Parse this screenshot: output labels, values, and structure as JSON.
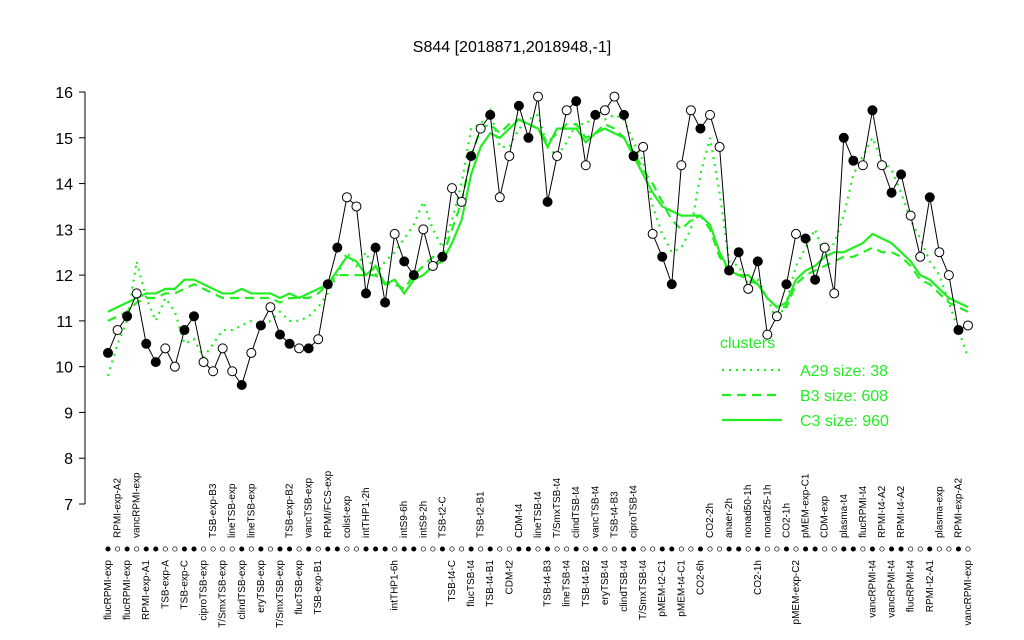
{
  "chart_data": {
    "type": "line",
    "title": "S844 [2018871,2018948,-1]",
    "ylim": [
      7,
      16
    ],
    "yticks": [
      7,
      8,
      9,
      10,
      11,
      12,
      13,
      14,
      15,
      16
    ],
    "legend_title": "clusters",
    "legend_position": "right",
    "categories": [
      "flucRPMI-exp",
      "RPMI-exp-A2",
      "flucRPMI-exp",
      "vancRPMI-exp",
      "RPMI-exp-A1",
      null,
      "TSB-exp-A",
      null,
      "TSB-exp-C",
      null,
      "ciproTSB-exp",
      "TSB-exp-B3",
      "T/SmxTSB-exp",
      "lineTSB-exp",
      "clindTSB-exp",
      "lineTSB-exp",
      "eryTSB-exp",
      null,
      "T/SmxTSB-exp",
      "TSB-exp-B2",
      "flucTSB-exp",
      "vancTSB-exp",
      "TSB-exp-B1",
      "RPMI/FCS-exp",
      null,
      "colist-exp",
      null,
      "intTHP1-2h",
      null,
      null,
      "intTHP1-6h",
      "intS9-6h",
      null,
      "intS9-2h",
      null,
      "TSB-t2-C",
      "TSB-t4-C",
      null,
      "flucTSB-t4",
      "TSB-t2-B1",
      "TSB-t4-B1",
      null,
      "CDM-t2",
      "CDM-t4",
      null,
      "lineTSB-t4",
      "TSB-t4-B3",
      "T/SmxTSB-t4",
      "lineTSB-t4",
      "clindTSB-t4",
      "TSB-t4-B2",
      "vancTSB-t4",
      "eryTSB-t4",
      "TSB-t4-B3",
      "clindTSB-t4",
      "ciproTSB-t4",
      "T/SmxTSB-t4",
      null,
      "pMEM-t2-C1",
      null,
      "pMEM-t4-C1",
      null,
      "CO2-6h",
      "CO2-2h",
      null,
      "anaer-2h",
      null,
      "nonad50-1h",
      "CO2-1h",
      "nonad25-1h",
      null,
      "CO2-1h",
      "pMEM-exp-C2",
      "pMEM-exp-C1",
      null,
      "CDM-exp",
      null,
      "plasma-t4",
      null,
      "flucRPMI-t4",
      "vancRPMI-t4",
      "RPMI-t4-A2",
      "vancRPMI-t4",
      "RPMI-t4-A2",
      "flucRPMI-t4",
      null,
      "RPMI-t2-A1",
      "plasma-exp",
      null,
      "RPMI-exp-A2",
      "vancRPMI-exp"
    ],
    "values": [
      10.3,
      10.8,
      11.1,
      11.6,
      10.5,
      10.1,
      10.4,
      10.0,
      10.8,
      11.1,
      10.1,
      9.9,
      10.4,
      9.9,
      9.6,
      10.3,
      10.9,
      11.3,
      10.7,
      10.5,
      10.4,
      10.4,
      10.6,
      11.8,
      12.6,
      13.7,
      13.5,
      11.6,
      12.6,
      11.4,
      12.9,
      12.3,
      12.0,
      13.0,
      12.2,
      12.4,
      13.9,
      13.6,
      14.6,
      15.2,
      15.5,
      13.7,
      14.6,
      15.7,
      15.0,
      15.9,
      13.6,
      14.6,
      15.6,
      15.8,
      14.4,
      15.5,
      15.6,
      15.9,
      15.5,
      14.6,
      14.8,
      12.9,
      12.4,
      11.8,
      14.4,
      15.6,
      15.2,
      15.5,
      14.8,
      12.1,
      12.5,
      11.7,
      12.3,
      10.7,
      11.1,
      11.8,
      12.9,
      12.8,
      11.9,
      12.6,
      11.6,
      15.0,
      14.5,
      14.4,
      15.6,
      14.4,
      13.8,
      14.2,
      13.3,
      12.4,
      13.7,
      12.5,
      12.0,
      10.8,
      10.9
    ],
    "filled": [
      true,
      false,
      true,
      false,
      true,
      true,
      false,
      false,
      true,
      true,
      false,
      false,
      false,
      false,
      true,
      false,
      true,
      false,
      true,
      true,
      false,
      true,
      false,
      true,
      true,
      false,
      false,
      true,
      true,
      true,
      false,
      true,
      true,
      false,
      false,
      true,
      false,
      false,
      true,
      false,
      true,
      false,
      false,
      true,
      true,
      false,
      true,
      false,
      false,
      true,
      false,
      true,
      false,
      false,
      true,
      true,
      false,
      false,
      true,
      true,
      false,
      false,
      true,
      false,
      false,
      true,
      true,
      false,
      true,
      false,
      false,
      true,
      false,
      true,
      true,
      false,
      false,
      true,
      true,
      false,
      true,
      false,
      true,
      true,
      false,
      false,
      true,
      false,
      false,
      true,
      false
    ],
    "series": [
      {
        "name": "A29 size: 38",
        "color": "#22ee22",
        "style": "dotted",
        "values": [
          9.8,
          10.5,
          11.0,
          12.3,
          11.5,
          11.0,
          11.5,
          11.2,
          10.5,
          10.6,
          10.2,
          10.5,
          10.8,
          10.8,
          10.9,
          11.0,
          10.9,
          11.0,
          11.2,
          11.0,
          11.0,
          11.1,
          11.3,
          11.6,
          12.0,
          12.5,
          12.2,
          12.5,
          12.0,
          12.3,
          12.5,
          12.8,
          13.1,
          13.6,
          13.0,
          12.6,
          13.2,
          14.0,
          15.2,
          15.3,
          15.6,
          14.8,
          14.8,
          15.2,
          15.4,
          15.5,
          14.8,
          14.6,
          14.9,
          15.3,
          15.3,
          15.5,
          15.4,
          15.5,
          15.4,
          14.9,
          14.5,
          13.5,
          12.9,
          12.5,
          12.6,
          13.0,
          14.2,
          15.0,
          13.8,
          12.3,
          12.2,
          11.8,
          11.9,
          11.5,
          11.0,
          11.4,
          12.2,
          12.6,
          13.0,
          12.4,
          12.7,
          13.3,
          14.2,
          14.6,
          15.0,
          14.5,
          14.3,
          13.8,
          13.2,
          12.8,
          12.3,
          12.0,
          11.4,
          10.8,
          10.2
        ]
      },
      {
        "name": "B3 size: 608",
        "color": "#22ee22",
        "style": "dashed",
        "values": [
          11.0,
          11.1,
          11.2,
          11.4,
          11.5,
          11.5,
          11.6,
          11.6,
          11.7,
          11.8,
          11.7,
          11.6,
          11.5,
          11.5,
          11.5,
          11.5,
          11.5,
          11.5,
          11.4,
          11.5,
          11.5,
          11.5,
          11.6,
          11.8,
          12.0,
          12.0,
          12.0,
          12.0,
          12.0,
          11.8,
          11.8,
          11.7,
          12.0,
          12.2,
          12.4,
          12.4,
          13.0,
          13.6,
          14.6,
          15.2,
          15.3,
          15.1,
          15.3,
          15.4,
          15.3,
          15.2,
          14.9,
          15.1,
          15.3,
          15.3,
          15.0,
          15.1,
          15.3,
          15.2,
          15.0,
          14.7,
          14.3,
          14.0,
          13.6,
          13.2,
          13.0,
          13.2,
          13.3,
          13.0,
          12.4,
          12.1,
          12.0,
          11.9,
          11.8,
          11.5,
          11.3,
          11.3,
          11.8,
          12.0,
          12.1,
          12.2,
          12.3,
          12.4,
          12.4,
          12.5,
          12.6,
          12.5,
          12.5,
          12.4,
          12.2,
          11.9,
          11.8,
          11.6,
          11.4,
          11.3,
          11.2
        ]
      },
      {
        "name": "C3 size: 960",
        "color": "#22ee22",
        "style": "solid",
        "values": [
          11.2,
          11.3,
          11.4,
          11.5,
          11.6,
          11.6,
          11.7,
          11.7,
          11.9,
          11.9,
          11.8,
          11.7,
          11.6,
          11.6,
          11.7,
          11.6,
          11.6,
          11.6,
          11.5,
          11.6,
          11.5,
          11.6,
          11.7,
          11.8,
          12.1,
          12.4,
          12.3,
          12.0,
          12.2,
          11.8,
          11.9,
          11.6,
          11.9,
          12.0,
          12.2,
          12.3,
          12.7,
          13.2,
          14.2,
          14.8,
          15.1,
          15.0,
          15.2,
          15.4,
          15.3,
          15.2,
          14.8,
          15.2,
          15.2,
          15.2,
          14.9,
          15.1,
          15.2,
          15.1,
          15.0,
          14.6,
          14.2,
          13.8,
          13.5,
          13.4,
          13.3,
          13.3,
          13.3,
          13.1,
          12.5,
          12.1,
          12.0,
          12.0,
          11.8,
          11.5,
          11.3,
          11.4,
          11.9,
          12.1,
          12.2,
          12.4,
          12.5,
          12.5,
          12.6,
          12.7,
          12.9,
          12.8,
          12.7,
          12.5,
          12.3,
          12.0,
          11.9,
          11.7,
          11.5,
          11.4,
          11.3
        ]
      }
    ]
  }
}
